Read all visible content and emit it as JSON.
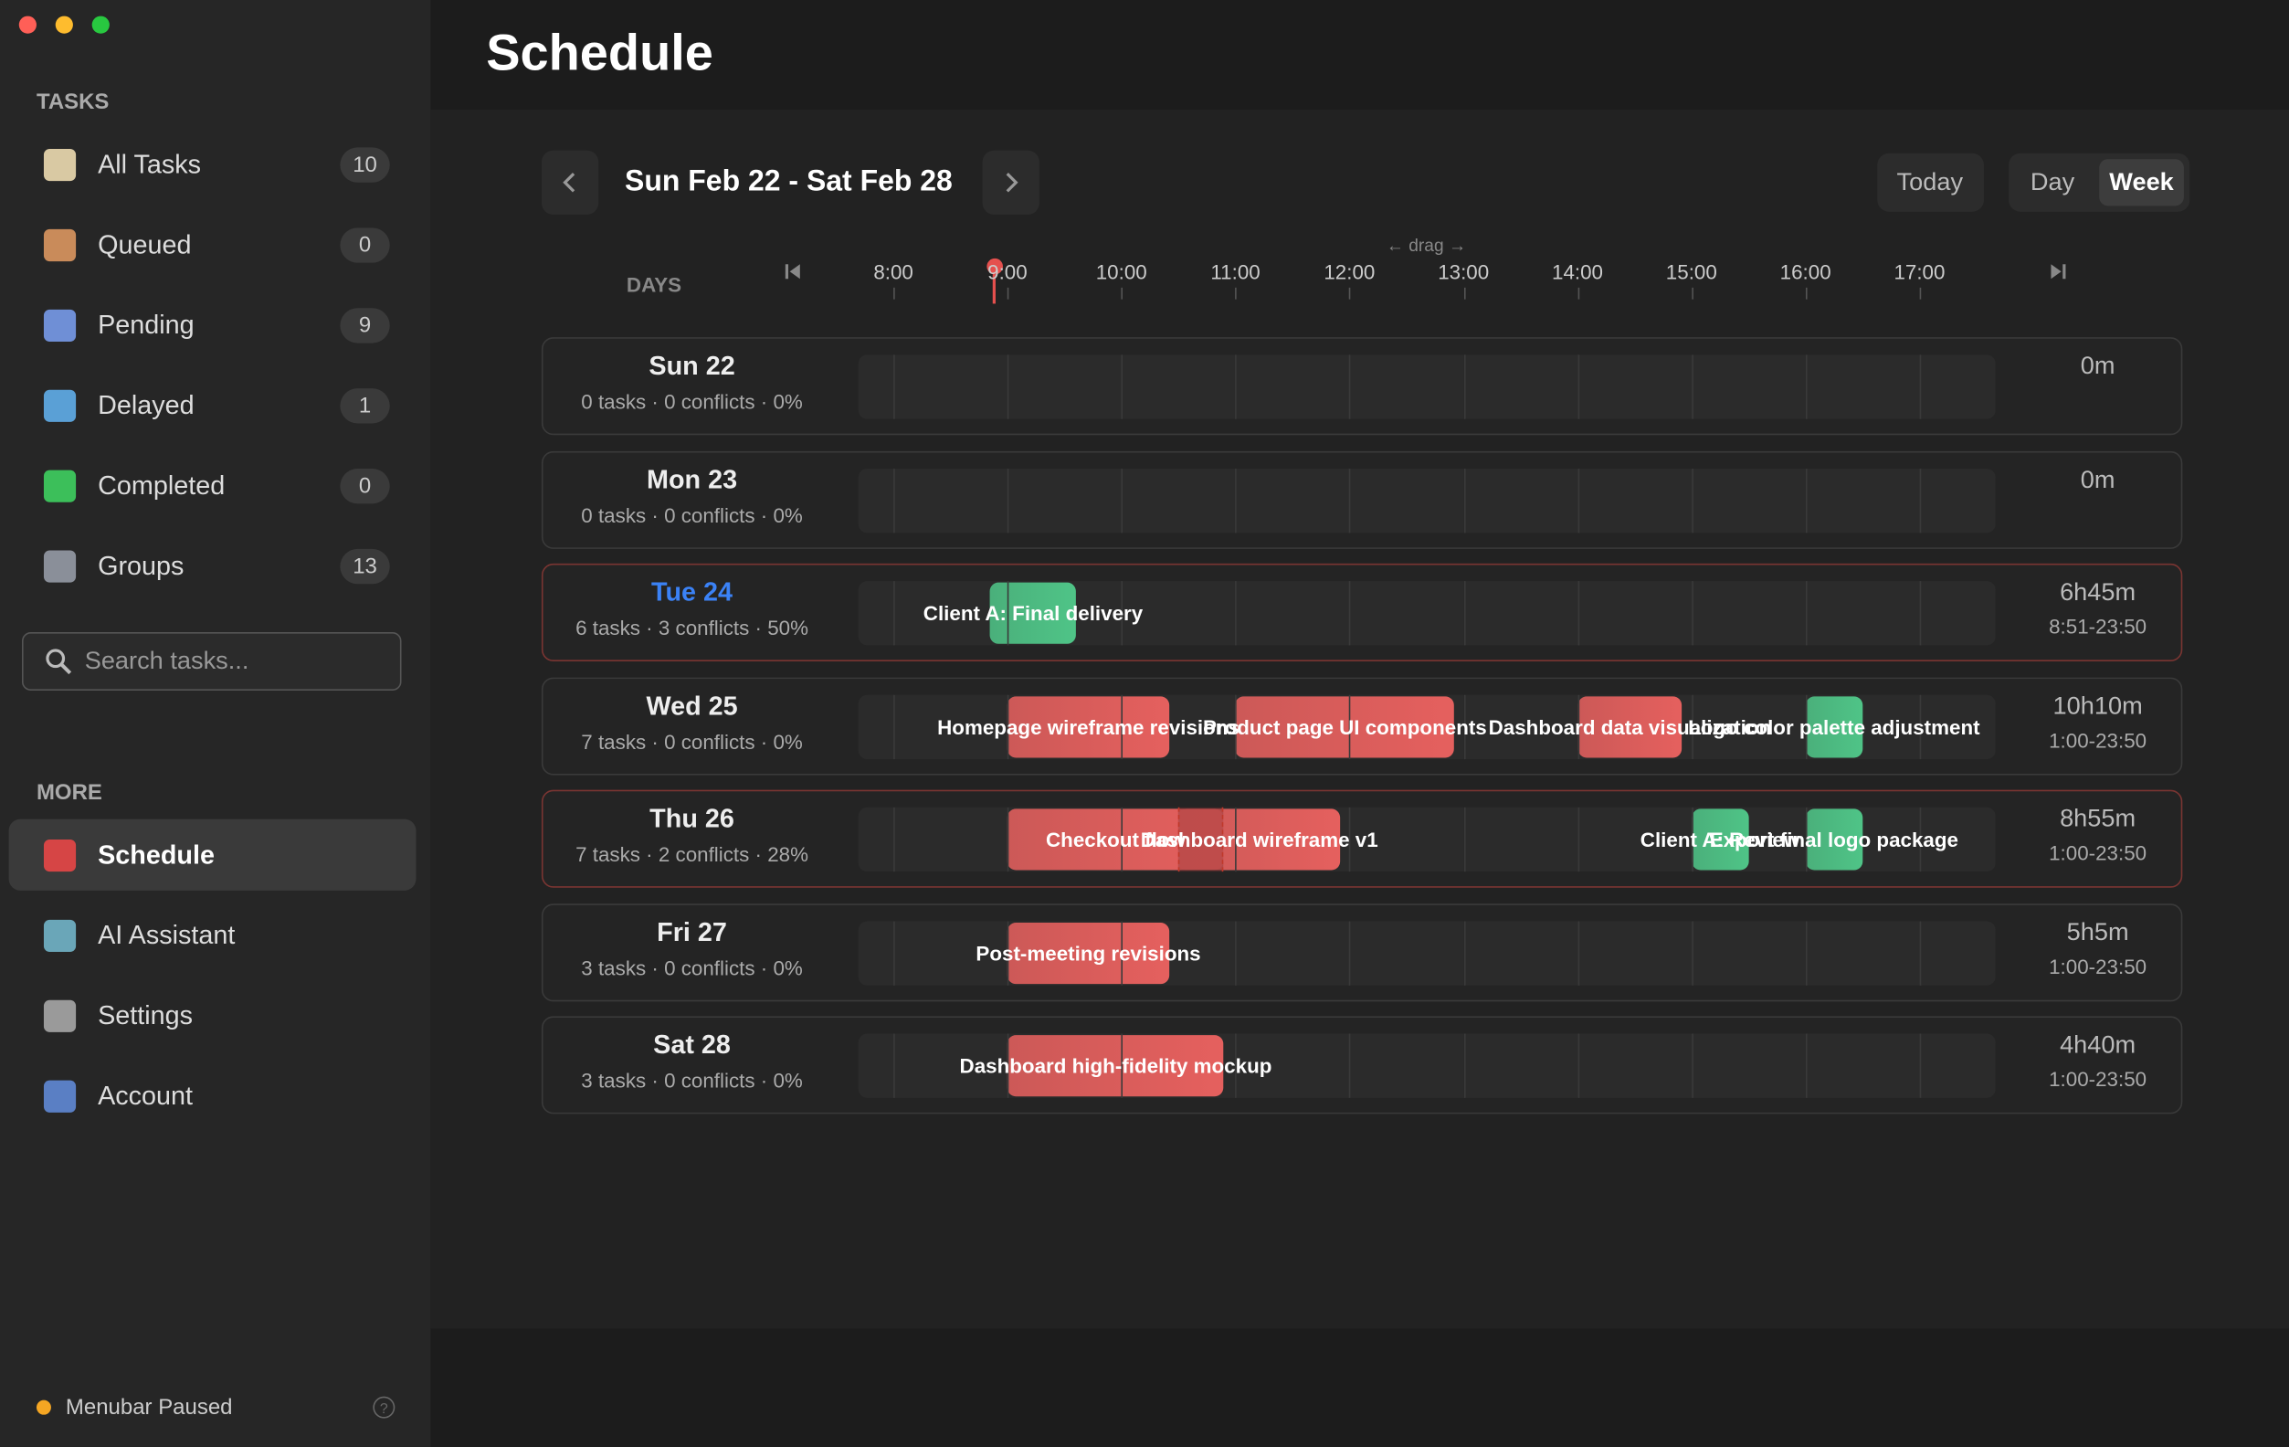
{
  "sidebar": {
    "tasks_heading": "TASKS",
    "items": [
      {
        "label": "All Tasks",
        "count": 10
      },
      {
        "label": "Queued",
        "count": 0
      },
      {
        "label": "Pending",
        "count": 9
      },
      {
        "label": "Delayed",
        "count": 1
      },
      {
        "label": "Completed",
        "count": 0
      },
      {
        "label": "Groups",
        "count": 13
      }
    ],
    "search_placeholder": "Search tasks...",
    "more_heading": "MORE",
    "more_items": [
      "Schedule",
      "AI Assistant",
      "Settings",
      "Account"
    ],
    "status": "Menubar Paused"
  },
  "header": {
    "title": "Schedule"
  },
  "toolbar": {
    "range": "Sun Feb 22 - Sat Feb 28",
    "today": "Today",
    "views": [
      "Day",
      "Week"
    ]
  },
  "timeline": {
    "days_label": "DAYS",
    "drag_hint": "← drag →",
    "hours": [
      "8:00",
      "9:00",
      "10:00",
      "11:00",
      "12:00",
      "13:00",
      "14:00",
      "15:00",
      "16:00",
      "17:00"
    ]
  },
  "days": [
    {
      "name": "Sun 22",
      "summary": "0 tasks · 0 conflicts · 0%",
      "total": "0m",
      "tasks": []
    },
    {
      "name": "Mon 23",
      "summary": "0 tasks · 0 conflicts · 0%",
      "total": "0m",
      "tasks": []
    },
    {
      "name": "Tue 24",
      "summary": "6 tasks · 3 conflicts · 50%",
      "total": "6h45m",
      "window": "8:51-23:50",
      "tasks": [
        {
          "label": "Client A: Final delivery",
          "start": 8.85,
          "end": 9.6,
          "color": "#4fc487"
        }
      ]
    },
    {
      "name": "Wed 25",
      "summary": "7 tasks · 0 conflicts · 0%",
      "total": "10h10m",
      "window": "1:00-23:50",
      "tasks": [
        {
          "label": "Homepage wireframe revisions",
          "start": 9.0,
          "end": 10.42,
          "color": "#e5605e"
        },
        {
          "label": "Product page UI components",
          "start": 11.0,
          "end": 12.92,
          "color": "#e5605e"
        },
        {
          "label": "Dashboard data visualization",
          "start": 14.0,
          "end": 14.92,
          "color": "#e5605e"
        },
        {
          "label": "Logo color palette adjustment",
          "start": 16.0,
          "end": 16.5,
          "color": "#4fc487"
        }
      ]
    },
    {
      "name": "Thu 26",
      "summary": "7 tasks · 2 conflicts · 28%",
      "total": "8h55m",
      "window": "1:00-23:50",
      "tasks": [
        {
          "label": "Checkout flow",
          "start": 9.0,
          "end": 10.9,
          "color": "#e5605e"
        },
        {
          "label": "Dashboard wireframe v1",
          "start": 10.5,
          "end": 11.92,
          "color": "#e5605e"
        },
        {
          "label": "Client A: Review",
          "start": 15.0,
          "end": 15.5,
          "color": "#4fc487"
        },
        {
          "label": "Export final logo package",
          "start": 16.0,
          "end": 16.5,
          "color": "#4fc487"
        }
      ]
    },
    {
      "name": "Fri 27",
      "summary": "3 tasks · 0 conflicts · 0%",
      "total": "5h5m",
      "window": "1:00-23:50",
      "tasks": [
        {
          "label": "Post-meeting revisions",
          "start": 9.0,
          "end": 10.42,
          "color": "#e5605e"
        }
      ]
    },
    {
      "name": "Sat 28",
      "summary": "3 tasks · 0 conflicts · 0%",
      "total": "4h40m",
      "window": "1:00-23:50",
      "tasks": [
        {
          "label": "Dashboard high-fidelity mockup",
          "start": 9.0,
          "end": 10.9,
          "color": "#e5605e"
        }
      ]
    }
  ]
}
